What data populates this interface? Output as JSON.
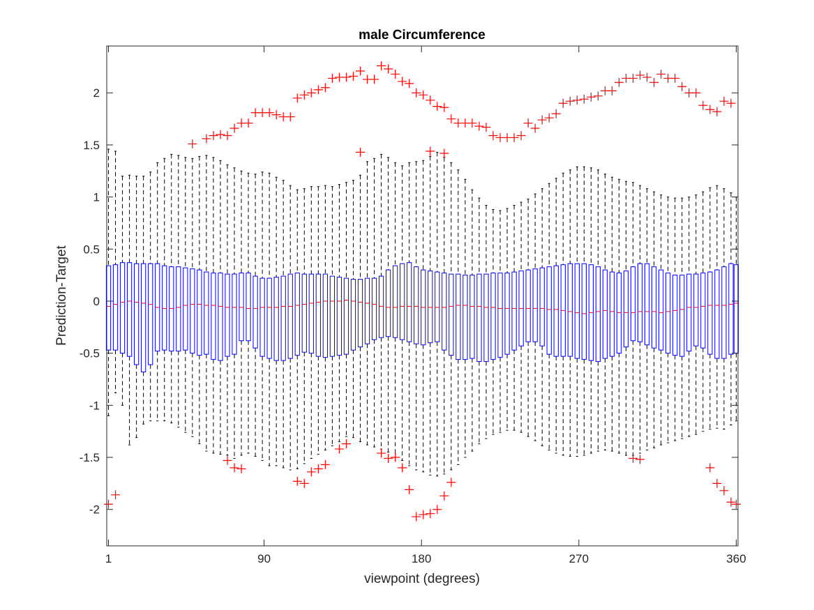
{
  "chart_data": {
    "type": "boxplot",
    "title": "male Circumference",
    "xlabel": "viewpoint (degrees)",
    "ylabel": "Prediction-Target",
    "xlim": [
      0,
      361
    ],
    "ylim": [
      -2.35,
      2.45
    ],
    "xticks": [
      1,
      90,
      180,
      270,
      360
    ],
    "xtick_labels": [
      "1",
      "90",
      "180",
      "270",
      "360"
    ],
    "yticks": [
      -2,
      -1.5,
      -1,
      -0.5,
      0,
      0.5,
      1,
      1.5,
      2
    ],
    "ytick_labels": [
      "-2",
      "-1.5",
      "-1",
      "-0.5",
      "0",
      "0.5",
      "1",
      "1.5",
      "2"
    ],
    "grid": false,
    "colors": {
      "box": "#0000ff",
      "median": "#ff0000",
      "whisker": "#000000",
      "outlier": "#ff0000",
      "axes": "#262626"
    },
    "box_step_degrees": 4,
    "series": [
      {
        "x": [
          1,
          5,
          9,
          13,
          17,
          21,
          25,
          29,
          33,
          37,
          41,
          45,
          49,
          53,
          57,
          61,
          65,
          69,
          73,
          77,
          81,
          85,
          89,
          93,
          97,
          101,
          105,
          109,
          113,
          117,
          121,
          125,
          129,
          133,
          137,
          141,
          145,
          149,
          153,
          157,
          161,
          165,
          169,
          173,
          177,
          181,
          185,
          189,
          193,
          197,
          201,
          205,
          209,
          213,
          217,
          221,
          225,
          229,
          233,
          237,
          241,
          245,
          249,
          253,
          257,
          261,
          265,
          269,
          273,
          277,
          281,
          285,
          289,
          293,
          297,
          301,
          305,
          309,
          313,
          317,
          321,
          325,
          329,
          333,
          337,
          341,
          345,
          349,
          353,
          357,
          360
        ],
        "q1": [
          -0.47,
          -0.47,
          -0.5,
          -0.53,
          -0.61,
          -0.68,
          -0.61,
          -0.48,
          -0.47,
          -0.48,
          -0.48,
          -0.47,
          -0.5,
          -0.52,
          -0.51,
          -0.56,
          -0.57,
          -0.53,
          -0.51,
          -0.38,
          -0.38,
          -0.45,
          -0.53,
          -0.55,
          -0.57,
          -0.57,
          -0.55,
          -0.52,
          -0.49,
          -0.5,
          -0.53,
          -0.54,
          -0.53,
          -0.52,
          -0.51,
          -0.47,
          -0.44,
          -0.41,
          -0.37,
          -0.35,
          -0.34,
          -0.35,
          -0.37,
          -0.39,
          -0.41,
          -0.42,
          -0.4,
          -0.39,
          -0.47,
          -0.52,
          -0.56,
          -0.56,
          -0.55,
          -0.58,
          -0.58,
          -0.56,
          -0.54,
          -0.51,
          -0.47,
          -0.43,
          -0.39,
          -0.39,
          -0.43,
          -0.51,
          -0.53,
          -0.53,
          -0.53,
          -0.55,
          -0.56,
          -0.57,
          -0.58,
          -0.55,
          -0.53,
          -0.5,
          -0.44,
          -0.38,
          -0.39,
          -0.42,
          -0.45,
          -0.47,
          -0.5,
          -0.52,
          -0.53,
          -0.48,
          -0.43,
          -0.45,
          -0.51,
          -0.55,
          -0.55,
          -0.51,
          -0.5
        ],
        "median": [
          -0.05,
          -0.03,
          -0.01,
          0.0,
          -0.01,
          -0.02,
          -0.03,
          -0.06,
          -0.07,
          -0.07,
          -0.06,
          -0.04,
          -0.03,
          -0.03,
          -0.04,
          -0.04,
          -0.05,
          -0.06,
          -0.06,
          -0.06,
          -0.07,
          -0.07,
          -0.06,
          -0.06,
          -0.06,
          -0.05,
          -0.05,
          -0.04,
          -0.03,
          -0.02,
          -0.01,
          0.0,
          0.0,
          0.0,
          0.01,
          0.0,
          -0.01,
          -0.02,
          -0.03,
          -0.05,
          -0.06,
          -0.06,
          -0.05,
          -0.05,
          -0.05,
          -0.06,
          -0.06,
          -0.06,
          -0.06,
          -0.05,
          -0.04,
          -0.04,
          -0.05,
          -0.05,
          -0.06,
          -0.06,
          -0.07,
          -0.07,
          -0.07,
          -0.07,
          -0.07,
          -0.07,
          -0.07,
          -0.08,
          -0.08,
          -0.09,
          -0.1,
          -0.11,
          -0.12,
          -0.11,
          -0.1,
          -0.09,
          -0.1,
          -0.11,
          -0.11,
          -0.11,
          -0.1,
          -0.1,
          -0.1,
          -0.11,
          -0.1,
          -0.09,
          -0.08,
          -0.06,
          -0.06,
          -0.05,
          -0.04,
          -0.04,
          -0.04,
          -0.03,
          -0.02
        ],
        "q3": [
          0.34,
          0.35,
          0.37,
          0.37,
          0.36,
          0.36,
          0.36,
          0.36,
          0.34,
          0.33,
          0.33,
          0.32,
          0.31,
          0.3,
          0.28,
          0.27,
          0.27,
          0.26,
          0.26,
          0.27,
          0.27,
          0.24,
          0.22,
          0.22,
          0.23,
          0.24,
          0.26,
          0.27,
          0.26,
          0.26,
          0.26,
          0.26,
          0.24,
          0.23,
          0.22,
          0.21,
          0.21,
          0.22,
          0.22,
          0.24,
          0.3,
          0.34,
          0.36,
          0.37,
          0.33,
          0.3,
          0.29,
          0.28,
          0.27,
          0.26,
          0.26,
          0.25,
          0.25,
          0.26,
          0.26,
          0.27,
          0.27,
          0.27,
          0.28,
          0.29,
          0.3,
          0.31,
          0.32,
          0.33,
          0.34,
          0.35,
          0.36,
          0.36,
          0.36,
          0.35,
          0.33,
          0.3,
          0.28,
          0.27,
          0.29,
          0.33,
          0.36,
          0.36,
          0.33,
          0.3,
          0.27,
          0.25,
          0.25,
          0.26,
          0.26,
          0.27,
          0.28,
          0.3,
          0.33,
          0.36,
          0.35
        ],
        "whisker_low": [
          -1.1,
          -0.88,
          -1.0,
          -1.38,
          -1.31,
          -1.18,
          -1.15,
          -1.15,
          -1.15,
          -1.17,
          -1.21,
          -1.26,
          -1.3,
          -1.37,
          -1.44,
          -1.46,
          -1.47,
          -1.48,
          -1.51,
          -1.48,
          -1.46,
          -1.49,
          -1.53,
          -1.58,
          -1.58,
          -1.6,
          -1.62,
          -1.61,
          -1.56,
          -1.51,
          -1.47,
          -1.43,
          -1.39,
          -1.35,
          -1.3,
          -1.31,
          -1.35,
          -1.38,
          -1.4,
          -1.42,
          -1.45,
          -1.5,
          -1.53,
          -1.58,
          -1.62,
          -1.64,
          -1.67,
          -1.68,
          -1.66,
          -1.62,
          -1.57,
          -1.5,
          -1.44,
          -1.37,
          -1.32,
          -1.28,
          -1.26,
          -1.24,
          -1.24,
          -1.26,
          -1.3,
          -1.34,
          -1.39,
          -1.43,
          -1.46,
          -1.48,
          -1.49,
          -1.49,
          -1.48,
          -1.46,
          -1.44,
          -1.43,
          -1.44,
          -1.46,
          -1.48,
          -1.48,
          -1.46,
          -1.43,
          -1.41,
          -1.38,
          -1.36,
          -1.34,
          -1.32,
          -1.3,
          -1.28,
          -1.25,
          -1.23,
          -1.22,
          -1.23,
          -1.19,
          -1.15
        ],
        "whisker_high": [
          1.46,
          1.44,
          1.2,
          1.21,
          1.2,
          1.2,
          1.24,
          1.33,
          1.37,
          1.41,
          1.4,
          1.38,
          1.37,
          1.39,
          1.4,
          1.38,
          1.35,
          1.31,
          1.28,
          1.25,
          1.23,
          1.22,
          1.24,
          1.23,
          1.19,
          1.16,
          1.11,
          1.07,
          1.08,
          1.1,
          1.1,
          1.11,
          1.1,
          1.12,
          1.14,
          1.16,
          1.21,
          1.34,
          1.37,
          1.41,
          1.38,
          1.33,
          1.3,
          1.33,
          1.34,
          1.35,
          1.39,
          1.43,
          1.38,
          1.33,
          1.26,
          1.17,
          1.07,
          0.99,
          0.92,
          0.88,
          0.87,
          0.89,
          0.92,
          0.95,
          0.98,
          1.03,
          1.08,
          1.13,
          1.18,
          1.23,
          1.26,
          1.29,
          1.29,
          1.28,
          1.26,
          1.22,
          1.19,
          1.17,
          1.15,
          1.14,
          1.11,
          1.08,
          1.05,
          1.02,
          1.0,
          0.99,
          0.99,
          1.0,
          1.02,
          1.05,
          1.09,
          1.11,
          1.08,
          1.04,
          1.0
        ]
      }
    ],
    "outliers_high": {
      "x": [
        49,
        57,
        61,
        65,
        69,
        73,
        77,
        81,
        85,
        89,
        93,
        97,
        101,
        105,
        109,
        113,
        117,
        121,
        125,
        129,
        133,
        137,
        141,
        145,
        149,
        153,
        157,
        161,
        165,
        169,
        173,
        177,
        181,
        185,
        189,
        193,
        197,
        201,
        205,
        209,
        213,
        217,
        221,
        225,
        229,
        233,
        237,
        241,
        245,
        249,
        253,
        257,
        261,
        265,
        269,
        273,
        277,
        281,
        285,
        289,
        293,
        297,
        301,
        305,
        309,
        313,
        317,
        321,
        325,
        329,
        333,
        337,
        341,
        345,
        349,
        353,
        357,
        145,
        185,
        193
      ],
      "y": [
        1.51,
        1.56,
        1.59,
        1.6,
        1.59,
        1.66,
        1.71,
        1.71,
        1.81,
        1.81,
        1.81,
        1.79,
        1.77,
        1.77,
        1.95,
        1.98,
        2.0,
        2.03,
        2.05,
        2.14,
        2.15,
        2.15,
        2.16,
        2.21,
        2.13,
        2.13,
        2.26,
        2.23,
        2.18,
        2.11,
        2.09,
        2.0,
        1.98,
        1.93,
        1.87,
        1.86,
        1.75,
        1.71,
        1.71,
        1.71,
        1.68,
        1.67,
        1.59,
        1.57,
        1.57,
        1.57,
        1.59,
        1.71,
        1.66,
        1.74,
        1.76,
        1.8,
        1.9,
        1.92,
        1.93,
        1.94,
        1.96,
        1.97,
        2.02,
        2.02,
        2.1,
        2.14,
        2.14,
        2.17,
        2.15,
        2.1,
        2.18,
        2.14,
        2.14,
        2.06,
        2.0,
        2.0,
        1.88,
        1.84,
        1.82,
        1.92,
        1.9,
        1.43,
        1.44,
        1.42
      ]
    },
    "outliers_low": {
      "x": [
        1,
        5,
        69,
        73,
        77,
        109,
        113,
        117,
        121,
        125,
        133,
        137,
        157,
        161,
        165,
        169,
        173,
        177,
        181,
        185,
        189,
        193,
        197,
        301,
        305,
        345,
        349,
        353,
        357,
        360
      ],
      "y": [
        -1.95,
        -1.86,
        -1.53,
        -1.6,
        -1.61,
        -1.73,
        -1.75,
        -1.64,
        -1.61,
        -1.57,
        -1.42,
        -1.37,
        -1.46,
        -1.51,
        -1.5,
        -1.6,
        -1.81,
        -2.07,
        -2.05,
        -2.04,
        -2.0,
        -1.87,
        -1.74,
        -1.51,
        -1.52,
        -1.6,
        -1.75,
        -1.82,
        -1.93,
        -1.95
      ]
    }
  }
}
